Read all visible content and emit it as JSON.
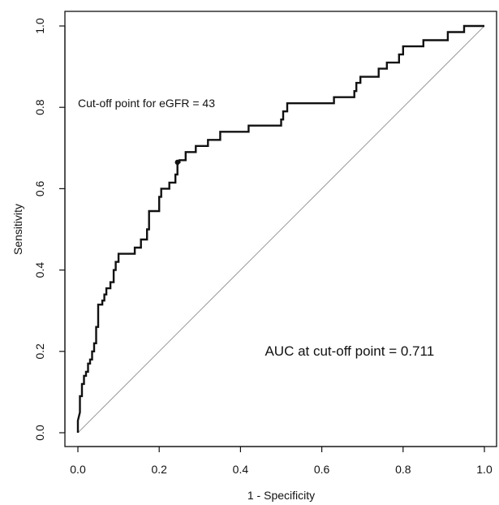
{
  "chart_data": {
    "type": "line",
    "title": "",
    "xlabel": "1 - Specificity",
    "ylabel": "Sensitivity",
    "xlim": [
      0,
      1
    ],
    "ylim": [
      0,
      1
    ],
    "x_ticks": [
      "0.0",
      "0.2",
      "0.4",
      "0.6",
      "0.8",
      "1.0"
    ],
    "y_ticks": [
      "0.0",
      "0.2",
      "0.4",
      "0.6",
      "0.8",
      "1.0"
    ],
    "grid": false,
    "legend": "none",
    "series": [
      {
        "style": "step",
        "color": "#111111",
        "points": [
          [
            0.0,
            0.0
          ],
          [
            0.0,
            0.03
          ],
          [
            0.005,
            0.05
          ],
          [
            0.005,
            0.09
          ],
          [
            0.01,
            0.09
          ],
          [
            0.01,
            0.12
          ],
          [
            0.015,
            0.12
          ],
          [
            0.015,
            0.14
          ],
          [
            0.02,
            0.14
          ],
          [
            0.02,
            0.15
          ],
          [
            0.025,
            0.15
          ],
          [
            0.025,
            0.17
          ],
          [
            0.03,
            0.17
          ],
          [
            0.03,
            0.18
          ],
          [
            0.035,
            0.18
          ],
          [
            0.035,
            0.2
          ],
          [
            0.04,
            0.2
          ],
          [
            0.04,
            0.22
          ],
          [
            0.045,
            0.22
          ],
          [
            0.045,
            0.26
          ],
          [
            0.05,
            0.26
          ],
          [
            0.05,
            0.315
          ],
          [
            0.06,
            0.315
          ],
          [
            0.06,
            0.325
          ],
          [
            0.065,
            0.325
          ],
          [
            0.065,
            0.34
          ],
          [
            0.07,
            0.34
          ],
          [
            0.07,
            0.355
          ],
          [
            0.08,
            0.355
          ],
          [
            0.08,
            0.37
          ],
          [
            0.088,
            0.37
          ],
          [
            0.088,
            0.4
          ],
          [
            0.093,
            0.4
          ],
          [
            0.093,
            0.42
          ],
          [
            0.1,
            0.42
          ],
          [
            0.1,
            0.44
          ],
          [
            0.14,
            0.44
          ],
          [
            0.14,
            0.455
          ],
          [
            0.155,
            0.455
          ],
          [
            0.155,
            0.475
          ],
          [
            0.17,
            0.475
          ],
          [
            0.17,
            0.5
          ],
          [
            0.175,
            0.5
          ],
          [
            0.175,
            0.545
          ],
          [
            0.2,
            0.545
          ],
          [
            0.2,
            0.58
          ],
          [
            0.205,
            0.58
          ],
          [
            0.205,
            0.6
          ],
          [
            0.225,
            0.6
          ],
          [
            0.225,
            0.615
          ],
          [
            0.24,
            0.615
          ],
          [
            0.24,
            0.635
          ],
          [
            0.245,
            0.635
          ],
          [
            0.245,
            0.665
          ],
          [
            0.25,
            0.665
          ],
          [
            0.25,
            0.67
          ],
          [
            0.265,
            0.67
          ],
          [
            0.265,
            0.69
          ],
          [
            0.29,
            0.69
          ],
          [
            0.29,
            0.705
          ],
          [
            0.32,
            0.705
          ],
          [
            0.32,
            0.72
          ],
          [
            0.35,
            0.72
          ],
          [
            0.35,
            0.74
          ],
          [
            0.42,
            0.74
          ],
          [
            0.42,
            0.755
          ],
          [
            0.5,
            0.755
          ],
          [
            0.5,
            0.77
          ],
          [
            0.505,
            0.77
          ],
          [
            0.505,
            0.79
          ],
          [
            0.515,
            0.79
          ],
          [
            0.515,
            0.81
          ],
          [
            0.63,
            0.81
          ],
          [
            0.63,
            0.825
          ],
          [
            0.68,
            0.825
          ],
          [
            0.68,
            0.84
          ],
          [
            0.685,
            0.84
          ],
          [
            0.685,
            0.86
          ],
          [
            0.695,
            0.86
          ],
          [
            0.695,
            0.875
          ],
          [
            0.74,
            0.875
          ],
          [
            0.74,
            0.895
          ],
          [
            0.76,
            0.895
          ],
          [
            0.76,
            0.91
          ],
          [
            0.79,
            0.91
          ],
          [
            0.79,
            0.93
          ],
          [
            0.8,
            0.93
          ],
          [
            0.8,
            0.95
          ],
          [
            0.85,
            0.95
          ],
          [
            0.85,
            0.965
          ],
          [
            0.91,
            0.965
          ],
          [
            0.91,
            0.985
          ],
          [
            0.95,
            0.985
          ],
          [
            0.95,
            1.0
          ],
          [
            1.0,
            1.0
          ]
        ]
      },
      {
        "style": "reference-diagonal",
        "color": "#9a9a9a",
        "points": [
          [
            0,
            0
          ],
          [
            1,
            1
          ]
        ]
      }
    ],
    "highlight_point": [
      0.245,
      0.665
    ],
    "annotations": [
      {
        "text": "Cut-off point for eGFR = 43",
        "x": 0.0,
        "y": 0.8,
        "anchor": "start"
      },
      {
        "text": "AUC at cut-off point = 0.711",
        "x": 0.46,
        "y": 0.19,
        "anchor": "start"
      }
    ]
  }
}
